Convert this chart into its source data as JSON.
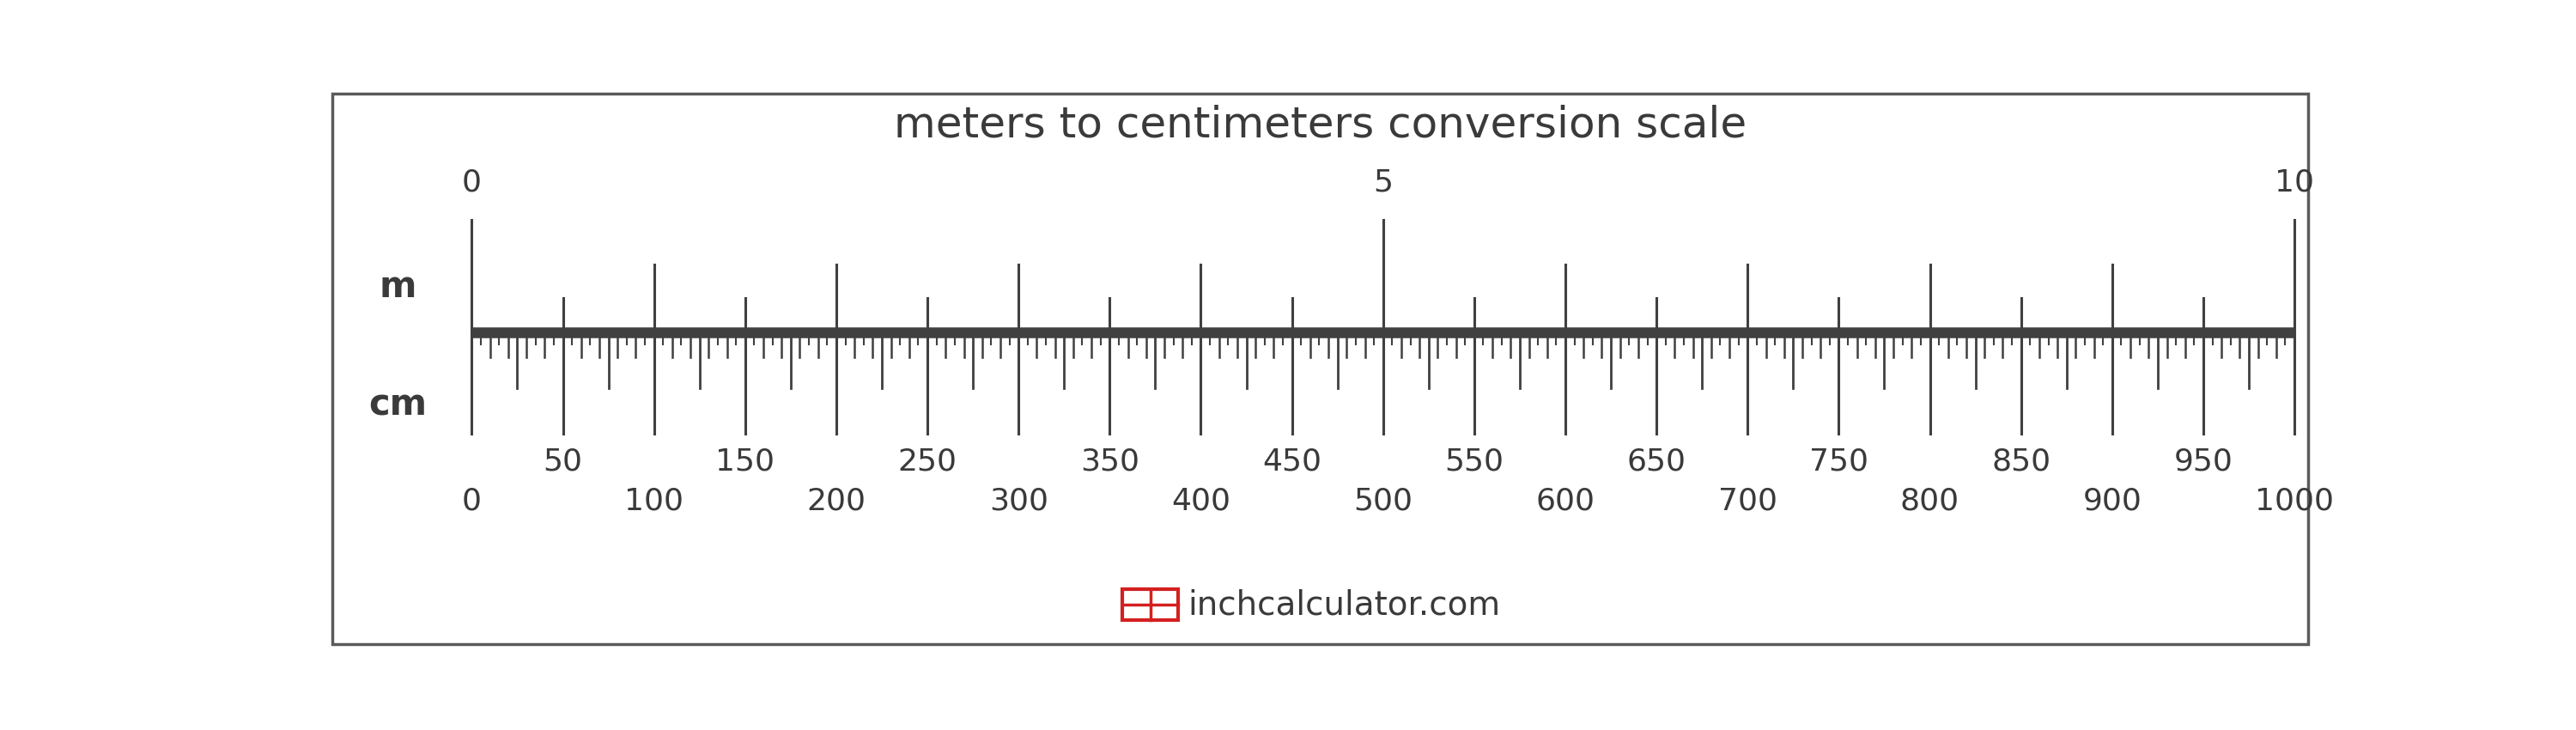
{
  "title": "meters to centimeters conversion scale",
  "title_fontsize": 36,
  "title_color": "#3a3a3a",
  "background_color": "#ffffff",
  "border_color": "#5a5a5a",
  "tick_color": "#404040",
  "label_color": "#3a3a3a",
  "unit_label_m": "m",
  "unit_label_cm": "cm",
  "unit_fontsize": 30,
  "m_major_labels": [
    0,
    5,
    10
  ],
  "cm_major_labels": [
    0,
    50,
    100,
    150,
    200,
    250,
    300,
    350,
    400,
    450,
    500,
    550,
    600,
    650,
    700,
    750,
    800,
    850,
    900,
    950,
    1000
  ],
  "tick_label_fontsize": 26,
  "logo_text": "inchcalculator.com",
  "logo_fontsize": 28,
  "logo_color": "#3a3a3a",
  "logo_box_color": "#d42020"
}
